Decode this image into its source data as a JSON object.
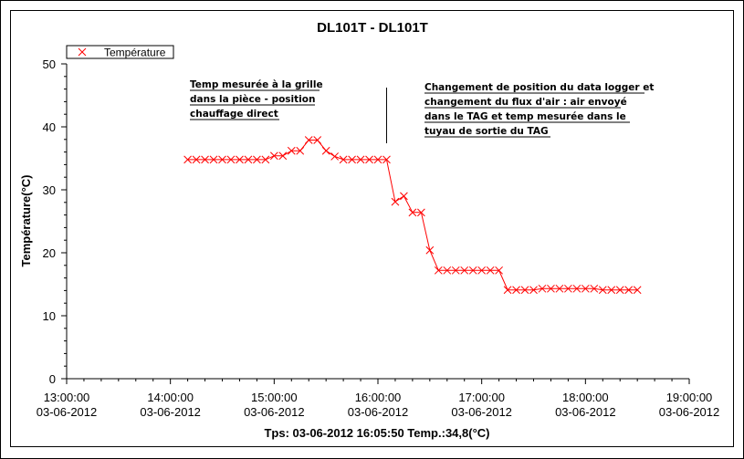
{
  "window": {
    "title": "DL101T - DL101T",
    "status_text": "Tps: 03-06-2012 16:05:50 Temp.:34,8(°C)"
  },
  "chart_data": {
    "type": "line",
    "title": "DL101T - DL101T",
    "xlabel": "",
    "ylabel": "Température(°C)",
    "xlim": [
      "03-06-2012 13:00:00",
      "03-06-2012 19:00:00"
    ],
    "ylim": [
      0,
      50
    ],
    "yticks": [
      "0",
      "10",
      "20",
      "30",
      "40",
      "50"
    ],
    "xticks": [
      {
        "time": "13:00:00",
        "date": "03-06-2012"
      },
      {
        "time": "14:00:00",
        "date": "03-06-2012"
      },
      {
        "time": "15:00:00",
        "date": "03-06-2012"
      },
      {
        "time": "16:00:00",
        "date": "03-06-2012"
      },
      {
        "time": "17:00:00",
        "date": "03-06-2012"
      },
      {
        "time": "18:00:00",
        "date": "03-06-2012"
      },
      {
        "time": "19:00:00",
        "date": "03-06-2012"
      }
    ],
    "grid": false,
    "legend_placement": "top-left",
    "series": [
      {
        "name": "Température",
        "color": "#ff0000",
        "marker": "x",
        "points": [
          [
            "14:10",
            34.8
          ],
          [
            "14:15",
            34.8
          ],
          [
            "14:20",
            34.8
          ],
          [
            "14:25",
            34.8
          ],
          [
            "14:30",
            34.8
          ],
          [
            "14:35",
            34.8
          ],
          [
            "14:40",
            34.8
          ],
          [
            "14:45",
            34.8
          ],
          [
            "14:50",
            34.8
          ],
          [
            "14:55",
            34.8
          ],
          [
            "15:00",
            35.4
          ],
          [
            "15:05",
            35.4
          ],
          [
            "15:10",
            36.2
          ],
          [
            "15:15",
            36.2
          ],
          [
            "15:20",
            37.9
          ],
          [
            "15:25",
            37.9
          ],
          [
            "15:30",
            36.2
          ],
          [
            "15:35",
            35.3
          ],
          [
            "15:40",
            34.8
          ],
          [
            "15:45",
            34.8
          ],
          [
            "15:50",
            34.8
          ],
          [
            "15:55",
            34.8
          ],
          [
            "16:00",
            34.8
          ],
          [
            "16:05",
            34.8
          ],
          [
            "16:10",
            28.1
          ],
          [
            "16:15",
            29.0
          ],
          [
            "16:20",
            26.4
          ],
          [
            "16:25",
            26.4
          ],
          [
            "16:30",
            20.4
          ],
          [
            "16:35",
            17.2
          ],
          [
            "16:40",
            17.2
          ],
          [
            "16:45",
            17.2
          ],
          [
            "16:50",
            17.2
          ],
          [
            "16:55",
            17.2
          ],
          [
            "17:00",
            17.2
          ],
          [
            "17:05",
            17.2
          ],
          [
            "17:10",
            17.2
          ],
          [
            "17:15",
            14.1
          ],
          [
            "17:20",
            14.1
          ],
          [
            "17:25",
            14.1
          ],
          [
            "17:30",
            14.1
          ],
          [
            "17:35",
            14.3
          ],
          [
            "17:40",
            14.3
          ],
          [
            "17:45",
            14.3
          ],
          [
            "17:50",
            14.3
          ],
          [
            "17:55",
            14.3
          ],
          [
            "18:00",
            14.3
          ],
          [
            "18:05",
            14.3
          ],
          [
            "18:10",
            14.1
          ],
          [
            "18:15",
            14.1
          ],
          [
            "18:20",
            14.1
          ],
          [
            "18:25",
            14.1
          ],
          [
            "18:30",
            14.1
          ]
        ]
      }
    ],
    "annotations": [
      {
        "id": "annotation-left",
        "lines": [
          "Temp mesurée à la grille",
          "dans la pièce - position",
          "chauffage direct"
        ]
      },
      {
        "id": "annotation-right",
        "lines": [
          "Changement de position du data logger et",
          "changement du flux d'air : air envoyé",
          "dans le TAG et temp mesurée dans le",
          "tuyau de sortie du TAG"
        ]
      }
    ],
    "marker_line_time": "16:05"
  }
}
